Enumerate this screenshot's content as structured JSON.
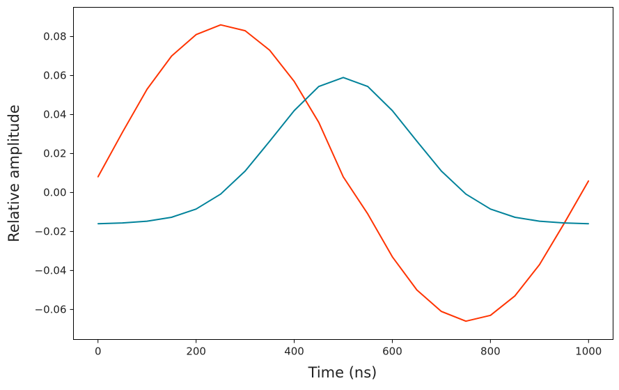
{
  "chart_data": {
    "type": "line",
    "title": "",
    "xlabel": "Time (ns)",
    "ylabel": "Relative amplitude",
    "xlim": [
      -50,
      1050
    ],
    "ylim": [
      -0.0754,
      0.095
    ],
    "xticks": [
      0,
      200,
      400,
      600,
      800,
      1000
    ],
    "xtick_labels": [
      "0",
      "200",
      "400",
      "600",
      "800",
      "1000"
    ],
    "yticks": [
      -0.06,
      -0.04,
      -0.02,
      0.0,
      0.02,
      0.04,
      0.06,
      0.08
    ],
    "ytick_labels": [
      "−0.06",
      "−0.04",
      "−0.02",
      "0.00",
      "0.02",
      "0.04",
      "0.06",
      "0.08"
    ],
    "grid": false,
    "legend": "none",
    "x": [
      0,
      50,
      100,
      150,
      200,
      250,
      300,
      350,
      400,
      450,
      500,
      550,
      600,
      650,
      700,
      750,
      800,
      850,
      900,
      950,
      1000
    ],
    "series": [
      {
        "color": "#ff3300",
        "values": [
          0.008,
          0.031,
          0.053,
          0.07,
          0.081,
          0.086,
          0.083,
          0.073,
          0.057,
          0.036,
          0.008,
          -0.011,
          -0.033,
          -0.05,
          -0.061,
          -0.066,
          -0.063,
          -0.053,
          -0.037,
          -0.016,
          0.006
        ]
      },
      {
        "color": "#00829a",
        "values": [
          -0.016,
          -0.0156,
          -0.0147,
          -0.0127,
          -0.0085,
          -0.0008,
          0.011,
          0.0263,
          0.042,
          0.0544,
          0.059,
          0.0544,
          0.042,
          0.0263,
          0.011,
          -0.0008,
          -0.0085,
          -0.0127,
          -0.0147,
          -0.0156,
          -0.016
        ]
      }
    ]
  }
}
